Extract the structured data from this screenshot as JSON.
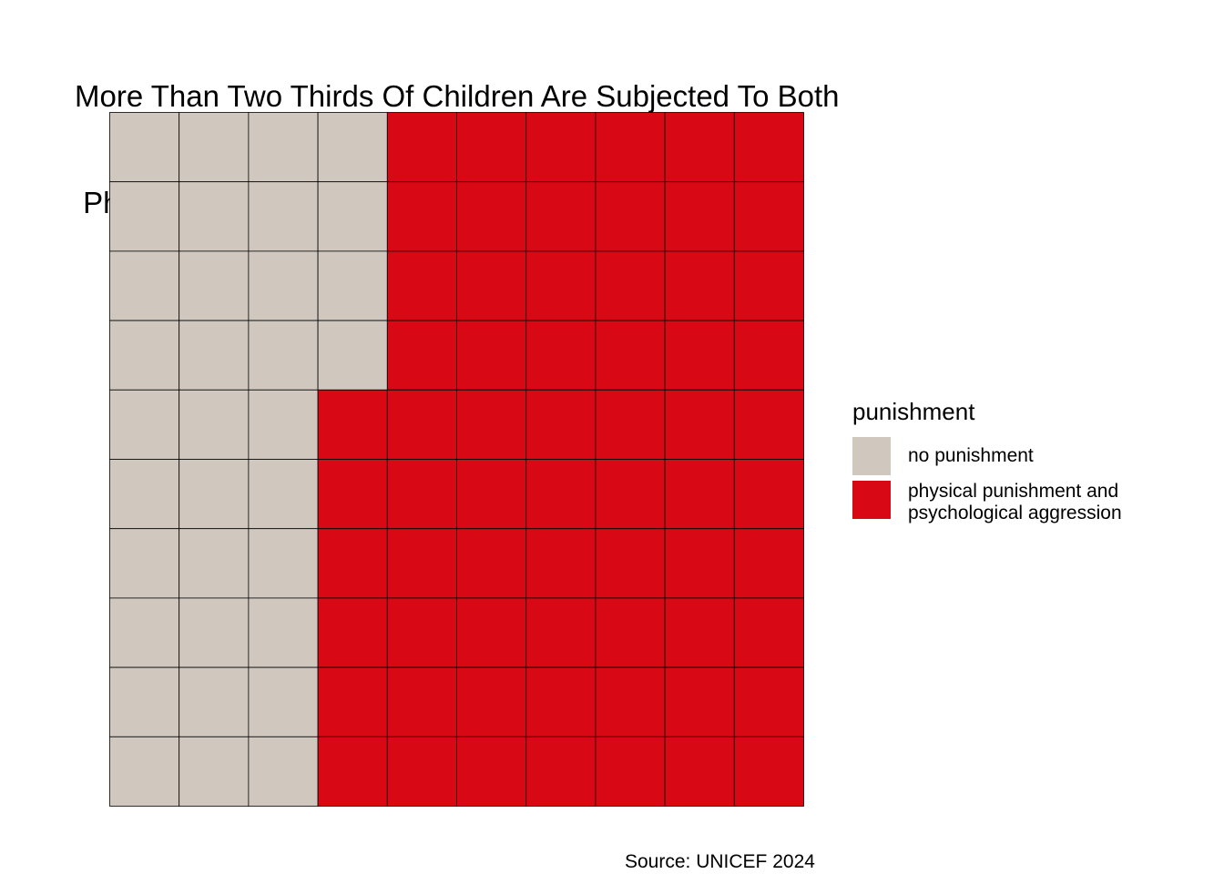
{
  "chart_data": {
    "type": "waffle",
    "title": "More Than Two Thirds Of Children Are Subjected To Both\n Physical Punishment And Psychological Aggression",
    "caption": "Source: UNICEF 2024",
    "grid": {
      "rows": 10,
      "columns": 10
    },
    "fill_order": "column-wise from top-left",
    "categories": [
      {
        "name": "no punishment",
        "value": 34,
        "color": "#D0C7BF"
      },
      {
        "name": "physical punishment and\npsychological aggression",
        "value": 66,
        "color": "#D90815"
      }
    ],
    "legend": {
      "title": "punishment",
      "position": "right"
    },
    "gridlines": false,
    "tile_border_color": "#000000"
  }
}
